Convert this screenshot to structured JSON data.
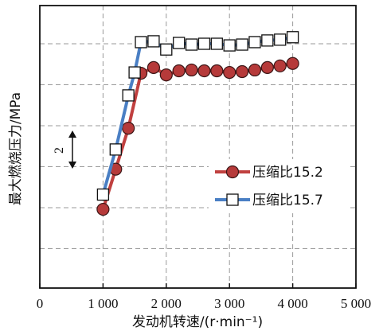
{
  "chart_data": {
    "type": "line",
    "xlabel": "发动机转速/(r·min⁻¹)",
    "ylabel": "最大燃烧压力/MPa",
    "xlim": [
      0,
      5000
    ],
    "x_ticks": [
      "0",
      "1 000",
      "2 000",
      "3 000",
      "4 000",
      "5 000"
    ],
    "y_ticks_labeled": false,
    "grid": true,
    "legend_position": "right-middle",
    "annotation": "2",
    "series": [
      {
        "name": "压缩比15.2",
        "marker": "circle",
        "color": "#c0403f",
        "marker_fill": "#b63a3a",
        "x": [
          1000,
          1200,
          1400,
          1600,
          1800,
          2000,
          2200,
          2400,
          2600,
          2800,
          3000,
          3200,
          3400,
          3600,
          3800,
          4000
        ],
        "y": [
          -0.04,
          0.94,
          1.94,
          3.28,
          3.42,
          3.24,
          3.34,
          3.36,
          3.34,
          3.34,
          3.3,
          3.32,
          3.36,
          3.42,
          3.46,
          3.52
        ]
      },
      {
        "name": "压缩比15.7",
        "marker": "square",
        "color": "#4a7fc4",
        "marker_fill": "#ffffff",
        "x": [
          1000,
          1200,
          1400,
          1500,
          1600,
          1800,
          2000,
          2200,
          2400,
          2600,
          2800,
          3000,
          3200,
          3400,
          3600,
          3800,
          4000
        ],
        "y": [
          0.32,
          1.42,
          2.74,
          3.3,
          4.04,
          4.06,
          3.86,
          4.02,
          3.98,
          4.0,
          4.0,
          3.96,
          3.98,
          4.04,
          4.08,
          4.1,
          4.16
        ]
      }
    ]
  }
}
